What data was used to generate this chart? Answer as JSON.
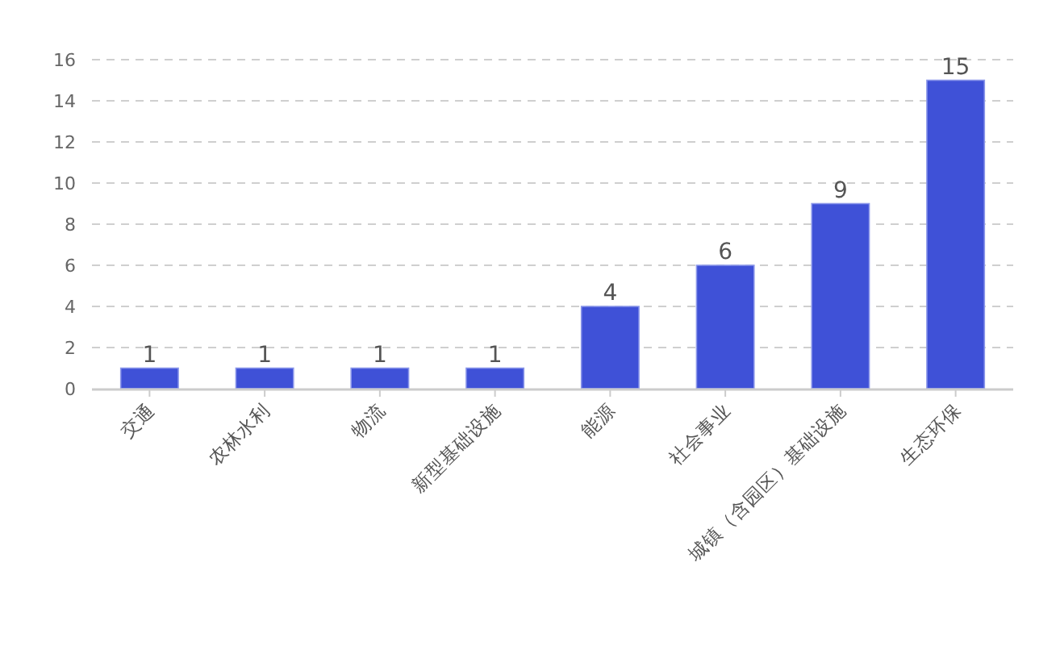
{
  "chart_data": {
    "type": "bar",
    "categories": [
      "交通",
      "农林水利",
      "物流",
      "新型基础设施",
      "能源",
      "社会事业",
      "城镇（含园区）基础设施",
      "生态环保"
    ],
    "values": [
      1,
      1,
      1,
      1,
      4,
      6,
      9,
      15
    ],
    "color": "#3f51d7",
    "ylim": [
      0,
      16
    ],
    "yticks": [
      0,
      2,
      4,
      6,
      8,
      10,
      12,
      14,
      16
    ],
    "grid": "y",
    "data_labels": true
  }
}
